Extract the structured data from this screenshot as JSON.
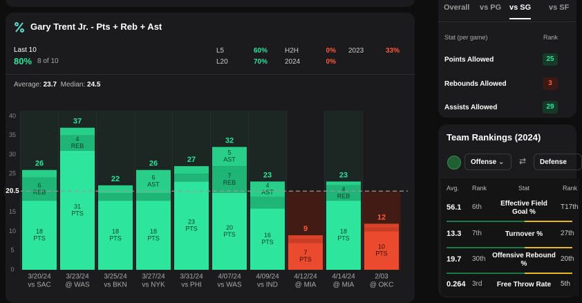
{
  "player_card": {
    "title": "Gary Trent Jr. - Pts + Reb + Ast",
    "period": "Last 10",
    "hit_rate": "80%",
    "hit_count": "8 of 10",
    "splits": [
      {
        "label": "L5",
        "value": "60%",
        "tone": "good"
      },
      {
        "label": "L20",
        "value": "70%",
        "tone": "good"
      },
      {
        "label": "H2H",
        "value": "0%",
        "tone": "bad"
      },
      {
        "label": "2024",
        "value": "0%",
        "tone": "bad"
      },
      {
        "label": "2023",
        "value": "33%",
        "tone": "bad"
      }
    ],
    "average_label": "Average:",
    "average": "23.7",
    "median_label": "Median:",
    "median": "24.5"
  },
  "chart_data": {
    "type": "bar",
    "stacked": true,
    "categories": [
      "3/20/24",
      "3/23/24",
      "3/25/24",
      "3/27/24",
      "3/31/24",
      "4/07/24",
      "4/09/24",
      "4/12/24",
      "4/14/24",
      "2/03"
    ],
    "opponents": [
      "vs SAC",
      "@ WAS",
      "vs BKN",
      "vs NYK",
      "vs PHI",
      "vs WAS",
      "vs IND",
      "@ MIA",
      "@ MIA",
      "@ OKC"
    ],
    "series": [
      {
        "name": "PTS",
        "color": "#2ee59d",
        "under_color": "#ea4a2e",
        "values": [
          18,
          31,
          18,
          18,
          23,
          20,
          16,
          7,
          18,
          10
        ]
      },
      {
        "name": "REB",
        "color": "#1fb577",
        "under_color": "#c93c25",
        "values": [
          6,
          4,
          2,
          2,
          2,
          7,
          3,
          1,
          4,
          1
        ]
      },
      {
        "name": "AST",
        "color": "#27cf88",
        "under_color": "#d8432a",
        "values": [
          2,
          2,
          2,
          6,
          2,
          5,
          4,
          1,
          1,
          1
        ]
      }
    ],
    "totals": [
      26,
      37,
      22,
      26,
      27,
      32,
      23,
      9,
      23,
      12
    ],
    "line": 20.5,
    "ylim": [
      0,
      40
    ],
    "yticks": [
      0,
      5,
      10,
      15,
      20,
      25,
      30,
      35,
      40
    ],
    "grid": false,
    "over_text_color": "#2ee59d",
    "under_text_color": "#ff5a3c"
  },
  "matchup": {
    "tabs": [
      "Overall",
      "vs PG",
      "vs SG",
      "vs SF"
    ],
    "active_tab": 2,
    "columns": [
      "Stat (per game)",
      "Rank"
    ],
    "rows": [
      {
        "stat": "Points Allowed",
        "rank": "25",
        "tone": "good"
      },
      {
        "stat": "Rebounds Allowed",
        "rank": "3",
        "tone": "bad"
      },
      {
        "stat": "Assists Allowed",
        "rank": "29",
        "tone": "good"
      }
    ]
  },
  "team_rankings": {
    "title": "Team Rankings (2024)",
    "left_select": "Offense",
    "right_select": "Defense",
    "columns": [
      "Avg.",
      "Rank",
      "Stat",
      "Rank"
    ],
    "rows": [
      {
        "avg": "56.1",
        "rank": "6th",
        "stat": "Effective Field Goal %",
        "opp_rank": "T17th"
      },
      {
        "avg": "13.3",
        "rank": "7th",
        "stat": "Turnover %",
        "opp_rank": "27th"
      },
      {
        "avg": "19.7",
        "rank": "30th",
        "stat": "Offensive Rebound %",
        "opp_rank": "20th"
      },
      {
        "avg": "0.264",
        "rank": "3rd",
        "stat": "Free Throw Rate",
        "opp_rank": "5th"
      }
    ]
  }
}
